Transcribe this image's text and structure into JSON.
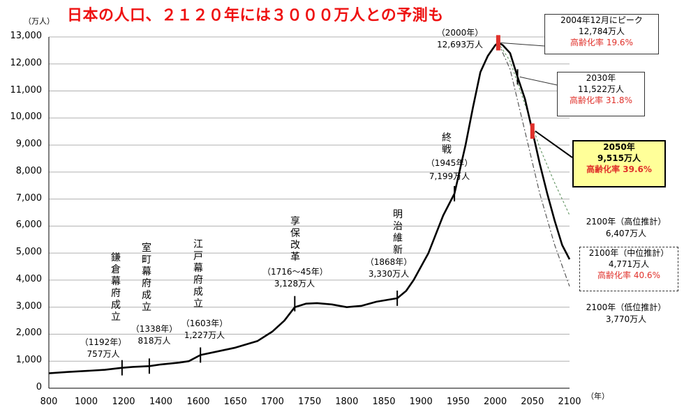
{
  "chart_data": {
    "type": "line",
    "title": "日本の人口、２１２０年には３０００万人との予測も",
    "yunit": "（万人）",
    "xunit": "（年）",
    "ylim": [
      0,
      13000
    ],
    "xlim": [
      800,
      2100
    ],
    "yticks": [
      "0",
      "1,000",
      "2,000",
      "3,000",
      "4,000",
      "5,000",
      "6,000",
      "7,000",
      "8,000",
      "9,000",
      "10,000",
      "11,000",
      "12,000",
      "13,000"
    ],
    "xticks": [
      "800",
      "1000",
      "1200",
      "1400",
      "1600",
      "1650",
      "1700",
      "1750",
      "1800",
      "1850",
      "1900",
      "1950",
      "2000",
      "2050",
      "2100"
    ],
    "grid": true,
    "series": [
      {
        "values": [
          [
            800,
            551
          ],
          [
            900,
            600
          ],
          [
            1000,
            640
          ],
          [
            1100,
            680
          ],
          [
            1192,
            757
          ],
          [
            1250,
            790
          ],
          [
            1338,
            818
          ],
          [
            1400,
            880
          ],
          [
            1500,
            950
          ],
          [
            1550,
            1000
          ],
          [
            1603,
            1227
          ],
          [
            1650,
            1500
          ],
          [
            1680,
            1750
          ],
          [
            1700,
            2100
          ],
          [
            1716,
            2500
          ],
          [
            1730,
            3000
          ],
          [
            1745,
            3128
          ],
          [
            1760,
            3150
          ],
          [
            1780,
            3100
          ],
          [
            1800,
            3000
          ],
          [
            1820,
            3050
          ],
          [
            1840,
            3200
          ],
          [
            1868,
            3330
          ],
          [
            1880,
            3600
          ],
          [
            1890,
            4000
          ],
          [
            1910,
            5000
          ],
          [
            1930,
            6400
          ],
          [
            1945,
            7199
          ],
          [
            1960,
            9000
          ],
          [
            1970,
            10400
          ],
          [
            1980,
            11700
          ],
          [
            1990,
            12300
          ],
          [
            2000,
            12693
          ],
          [
            2004,
            12784
          ],
          [
            2010,
            12700
          ],
          [
            2020,
            12400
          ],
          [
            2030,
            11522
          ],
          [
            2040,
            10700
          ],
          [
            2050,
            9515
          ],
          [
            2060,
            8300
          ],
          [
            2070,
            7200
          ],
          [
            2080,
            6200
          ],
          [
            2090,
            5300
          ],
          [
            2100,
            4771
          ]
        ]
      },
      {
        "values": [
          [
            2004,
            12784
          ],
          [
            2020,
            12100
          ],
          [
            2040,
            10500
          ],
          [
            2060,
            8900
          ],
          [
            2080,
            7600
          ],
          [
            2100,
            6407
          ]
        ]
      },
      {
        "values": [
          [
            2004,
            12784
          ],
          [
            2020,
            11800
          ],
          [
            2040,
            9500
          ],
          [
            2060,
            7200
          ],
          [
            2080,
            5300
          ],
          [
            2100,
            3770
          ]
        ]
      }
    ],
    "annotations": {
      "kamakura": {
        "name": "鎌倉幕府成立",
        "year": "（1192年）",
        "pop": "757万人"
      },
      "muromachi": {
        "name": "室町幕府成立",
        "year": "（1338年）",
        "pop": "818万人"
      },
      "edo": {
        "name": "江戸幕府成立",
        "year": "（1603年）",
        "pop": "1,227万人"
      },
      "kyoho": {
        "name": "享保改革",
        "year": "（1716～45年）",
        "pop": "3,128万人"
      },
      "meiji": {
        "name": "明治維新",
        "year": "（1868年）",
        "pop": "3,330万人"
      },
      "shusen": {
        "name": "終戦",
        "year": "（1945年）",
        "pop": "7,199万人"
      },
      "y2000": {
        "year": "（2000年）",
        "pop": "12,693万人"
      },
      "peak": {
        "line1": "2004年12月にピーク",
        "line2": "12,784万人",
        "ratio": "高齢化率 19.6%"
      },
      "y2030": {
        "line1": "2030年",
        "line2": "11,522万人",
        "ratio": "高齢化率 31.8%"
      },
      "y2050": {
        "line1": "2050年",
        "line2": "9,515万人",
        "ratio": "高齢化率 39.6%"
      },
      "high": {
        "line1": "2100年（高位推計）",
        "line2": "6,407万人"
      },
      "mid": {
        "line1": "2100年（中位推計）",
        "line2": "4,771万人",
        "ratio": "高齢化率 40.6%"
      },
      "low": {
        "line1": "2100年（低位推計）",
        "line2": "3,770万人"
      }
    },
    "colors": {
      "line": "#000000",
      "highlight": "#e0302a",
      "grid": "#b0b0b0",
      "title": "#ee1111",
      "box_highlight": "#ffff99"
    }
  }
}
